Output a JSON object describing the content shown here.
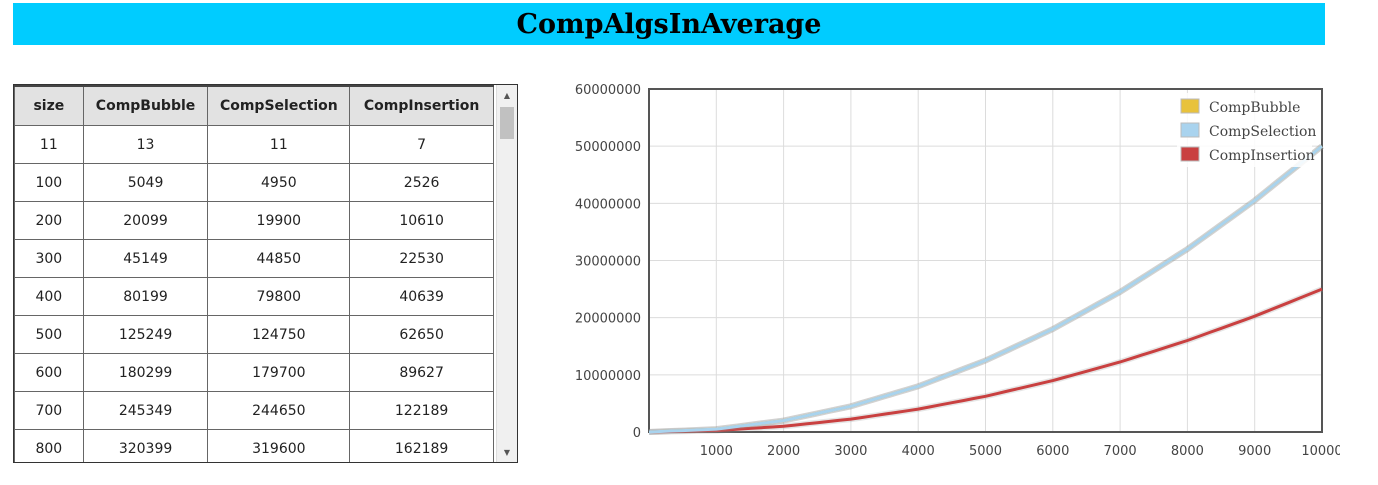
{
  "page": {
    "title": "CompAlgsInAverage"
  },
  "table": {
    "headers": [
      "size",
      "CompBubble",
      "CompSelection",
      "CompInsertion"
    ],
    "rows": [
      [
        "11",
        "13",
        "11",
        "7"
      ],
      [
        "100",
        "5049",
        "4950",
        "2526"
      ],
      [
        "200",
        "20099",
        "19900",
        "10610"
      ],
      [
        "300",
        "45149",
        "44850",
        "22530"
      ],
      [
        "400",
        "80199",
        "79800",
        "40639"
      ],
      [
        "500",
        "125249",
        "124750",
        "62650"
      ],
      [
        "600",
        "180299",
        "179700",
        "89627"
      ],
      [
        "700",
        "245349",
        "244650",
        "122189"
      ],
      [
        "800",
        "320399",
        "319600",
        "162189"
      ]
    ]
  },
  "chart_data": {
    "type": "line",
    "title": "",
    "xlabel": "",
    "ylabel": "",
    "xlim": [
      0,
      10000
    ],
    "ylim": [
      0,
      60000000
    ],
    "x_ticks": [
      1000,
      2000,
      3000,
      4000,
      5000,
      6000,
      7000,
      8000,
      9000,
      10000
    ],
    "y_ticks": [
      0,
      10000000,
      20000000,
      30000000,
      40000000,
      50000000,
      60000000
    ],
    "grid": true,
    "legend_position": "top-right",
    "series": [
      {
        "name": "CompBubble",
        "color": "#e8c23c",
        "x": [
          0,
          1000,
          2000,
          3000,
          4000,
          5000,
          6000,
          7000,
          8000,
          9000,
          10000
        ],
        "y": [
          0,
          500000,
          2000000,
          4500000,
          8000000,
          12500000,
          18000000,
          24500000,
          32000000,
          40500000,
          50000000
        ]
      },
      {
        "name": "CompSelection",
        "color": "#a9d3ee",
        "x": [
          0,
          1000,
          2000,
          3000,
          4000,
          5000,
          6000,
          7000,
          8000,
          9000,
          10000
        ],
        "y": [
          0,
          500000,
          2000000,
          4500000,
          8000000,
          12500000,
          18000000,
          24500000,
          32000000,
          40500000,
          50000000
        ]
      },
      {
        "name": "CompInsertion",
        "color": "#c94040",
        "x": [
          0,
          1000,
          2000,
          3000,
          4000,
          5000,
          6000,
          7000,
          8000,
          9000,
          10000
        ],
        "y": [
          0,
          250000,
          1000000,
          2250000,
          4000000,
          6250000,
          9000000,
          12250000,
          16000000,
          20250000,
          25000000
        ]
      }
    ]
  }
}
